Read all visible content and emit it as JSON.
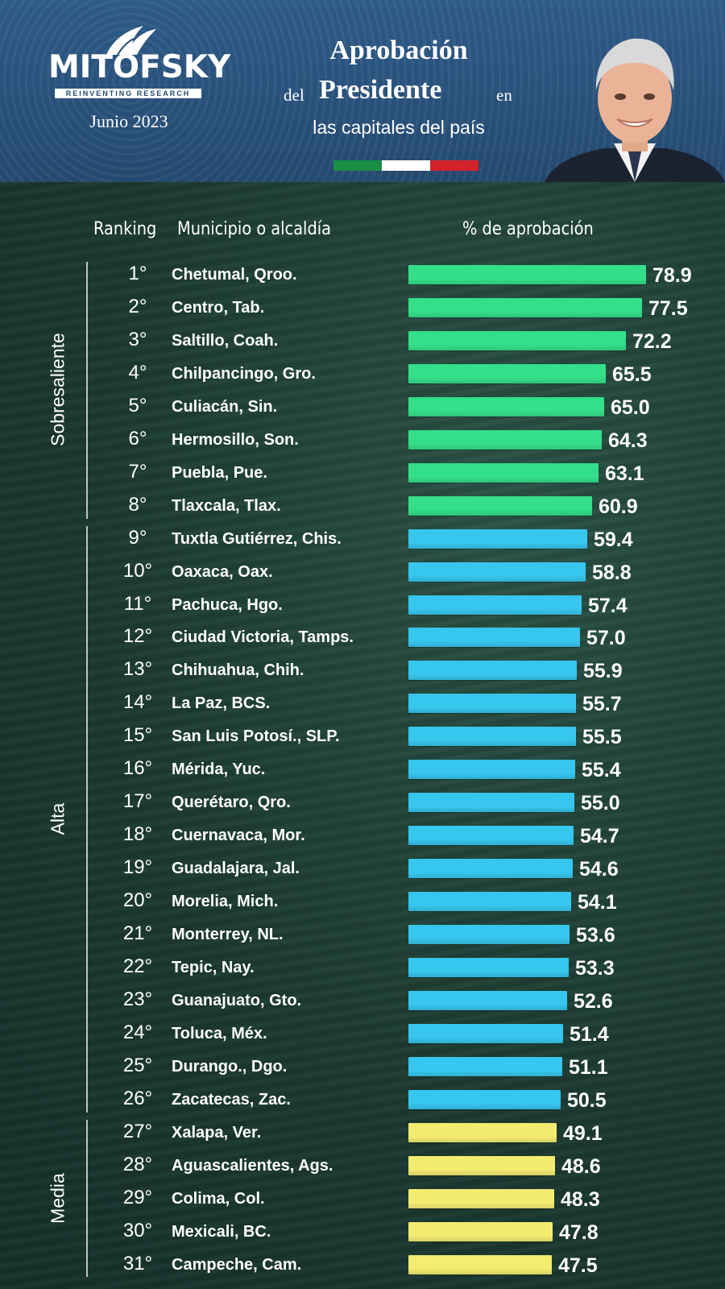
{
  "header": {
    "logo_text": "MITOFSKY",
    "logo_tagline": "REINVENTING RESEARCH",
    "date": "Junio 2023",
    "title_line1": "Aprobación",
    "title_word_del": "del",
    "title_word_presidente": "Presidente",
    "title_word_en": "en",
    "title_line3": "las capitales del país",
    "flag_colors": [
      "#1a8f45",
      "#ffffff",
      "#d4212a"
    ]
  },
  "columns": {
    "ranking": "Ranking",
    "municipio": "Municipio o alcaldía",
    "aprobacion": "% de aprobación"
  },
  "colors": {
    "sobresaliente": "#34df8a",
    "alta": "#37c6ee",
    "media": "#f4ec71"
  },
  "chart_data": {
    "type": "bar",
    "orientation": "horizontal",
    "title": "Aprobación del Presidente en las capitales del país",
    "subtitle": "Junio 2023",
    "value_label": "% de aprobación",
    "groups": [
      {
        "name": "Sobresaliente",
        "from_rank": 1,
        "to_rank": 8
      },
      {
        "name": "Alta",
        "from_rank": 9,
        "to_rank": 26
      },
      {
        "name": "Media",
        "from_rank": 27,
        "to_rank": 31
      }
    ],
    "rows": [
      {
        "rank": "1°",
        "name": "Chetumal, Qroo.",
        "value": "78.9",
        "group": "sobresaliente"
      },
      {
        "rank": "2°",
        "name": "Centro, Tab.",
        "value": "77.5",
        "group": "sobresaliente"
      },
      {
        "rank": "3°",
        "name": "Saltillo, Coah.",
        "value": "72.2",
        "group": "sobresaliente"
      },
      {
        "rank": "4°",
        "name": "Chilpancingo, Gro.",
        "value": "65.5",
        "group": "sobresaliente"
      },
      {
        "rank": "5°",
        "name": "Culiacán, Sin.",
        "value": "65.0",
        "group": "sobresaliente"
      },
      {
        "rank": "6°",
        "name": "Hermosillo, Son.",
        "value": "64.3",
        "group": "sobresaliente"
      },
      {
        "rank": "7°",
        "name": "Puebla, Pue.",
        "value": "63.1",
        "group": "sobresaliente"
      },
      {
        "rank": "8°",
        "name": "Tlaxcala, Tlax.",
        "value": "60.9",
        "group": "sobresaliente"
      },
      {
        "rank": "9°",
        "name": "Tuxtla Gutiérrez, Chis.",
        "value": "59.4",
        "group": "alta"
      },
      {
        "rank": "10°",
        "name": "Oaxaca, Oax.",
        "value": "58.8",
        "group": "alta"
      },
      {
        "rank": "11°",
        "name": "Pachuca, Hgo.",
        "value": "57.4",
        "group": "alta"
      },
      {
        "rank": "12°",
        "name": "Ciudad Victoria, Tamps.",
        "value": "57.0",
        "group": "alta"
      },
      {
        "rank": "13°",
        "name": "Chihuahua, Chih.",
        "value": "55.9",
        "group": "alta"
      },
      {
        "rank": "14°",
        "name": "La Paz, BCS.",
        "value": "55.7",
        "group": "alta"
      },
      {
        "rank": "15°",
        "name": "San Luis Potosí., SLP.",
        "value": "55.5",
        "group": "alta"
      },
      {
        "rank": "16°",
        "name": "Mérida, Yuc.",
        "value": "55.4",
        "group": "alta"
      },
      {
        "rank": "17°",
        "name": "Querétaro, Qro.",
        "value": "55.0",
        "group": "alta"
      },
      {
        "rank": "18°",
        "name": "Cuernavaca, Mor.",
        "value": "54.7",
        "group": "alta"
      },
      {
        "rank": "19°",
        "name": "Guadalajara, Jal.",
        "value": "54.6",
        "group": "alta"
      },
      {
        "rank": "20°",
        "name": "Morelia, Mich.",
        "value": "54.1",
        "group": "alta"
      },
      {
        "rank": "21°",
        "name": "Monterrey, NL.",
        "value": "53.6",
        "group": "alta"
      },
      {
        "rank": "22°",
        "name": "Tepic, Nay.",
        "value": "53.3",
        "group": "alta"
      },
      {
        "rank": "23°",
        "name": "Guanajuato, Gto.",
        "value": "52.6",
        "group": "alta"
      },
      {
        "rank": "24°",
        "name": "Toluca, Méx.",
        "value": "51.4",
        "group": "alta"
      },
      {
        "rank": "25°",
        "name": "Durango., Dgo.",
        "value": "51.1",
        "group": "alta"
      },
      {
        "rank": "26°",
        "name": "Zacatecas, Zac.",
        "value": "50.5",
        "group": "alta"
      },
      {
        "rank": "27°",
        "name": "Xalapa, Ver.",
        "value": "49.1",
        "group": "media"
      },
      {
        "rank": "28°",
        "name": "Aguascalientes, Ags.",
        "value": "48.6",
        "group": "media"
      },
      {
        "rank": "29°",
        "name": "Colima, Col.",
        "value": "48.3",
        "group": "media"
      },
      {
        "rank": "30°",
        "name": "Mexicali, BC.",
        "value": "47.8",
        "group": "media"
      },
      {
        "rank": "31°",
        "name": "Campeche, Cam.",
        "value": "47.5",
        "group": "media"
      }
    ]
  }
}
